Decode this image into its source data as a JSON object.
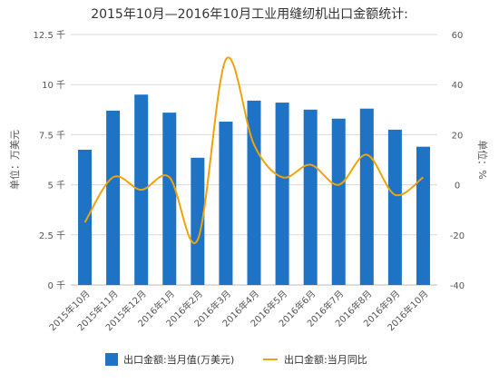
{
  "chart_data": {
    "type": "bar",
    "title": "2015年10月—2016年10月工业用缝纫机出口金额统计:",
    "categories": [
      "2015年10月",
      "2015年11月",
      "2015年12月",
      "2016年1月",
      "2016年2月",
      "2016年3月",
      "2016年4月",
      "2016年5月",
      "2016年6月",
      "2016年7月",
      "2016年8月",
      "2016年9月",
      "2016年10月"
    ],
    "ylabel_left": "单位：万美元",
    "ylabel_right": "单位：%",
    "ylim_left": [
      0,
      12500
    ],
    "ylim_right": [
      -40,
      60
    ],
    "yticks_left": [
      "0 千",
      "2.5 千",
      "5 千",
      "7.5 千",
      "10 千",
      "12.5 千"
    ],
    "yticks_right": [
      "-40",
      "-20",
      "0",
      "20",
      "40",
      "60"
    ],
    "grid": true,
    "legend_position": "bottom",
    "series": [
      {
        "name": "出口金额:当月值(万美元)",
        "type": "bar",
        "axis": "left",
        "color": "#1f73c4",
        "values": [
          6750,
          8700,
          9500,
          8600,
          6350,
          8150,
          9200,
          9100,
          8750,
          8300,
          8800,
          7750,
          6900
        ]
      },
      {
        "name": "出口金额:当月同比",
        "type": "line",
        "axis": "right",
        "color": "#f0a30a",
        "values": [
          -15,
          3,
          -2,
          3,
          -22,
          50,
          16,
          3,
          8,
          0,
          12,
          -4,
          3
        ]
      }
    ]
  }
}
